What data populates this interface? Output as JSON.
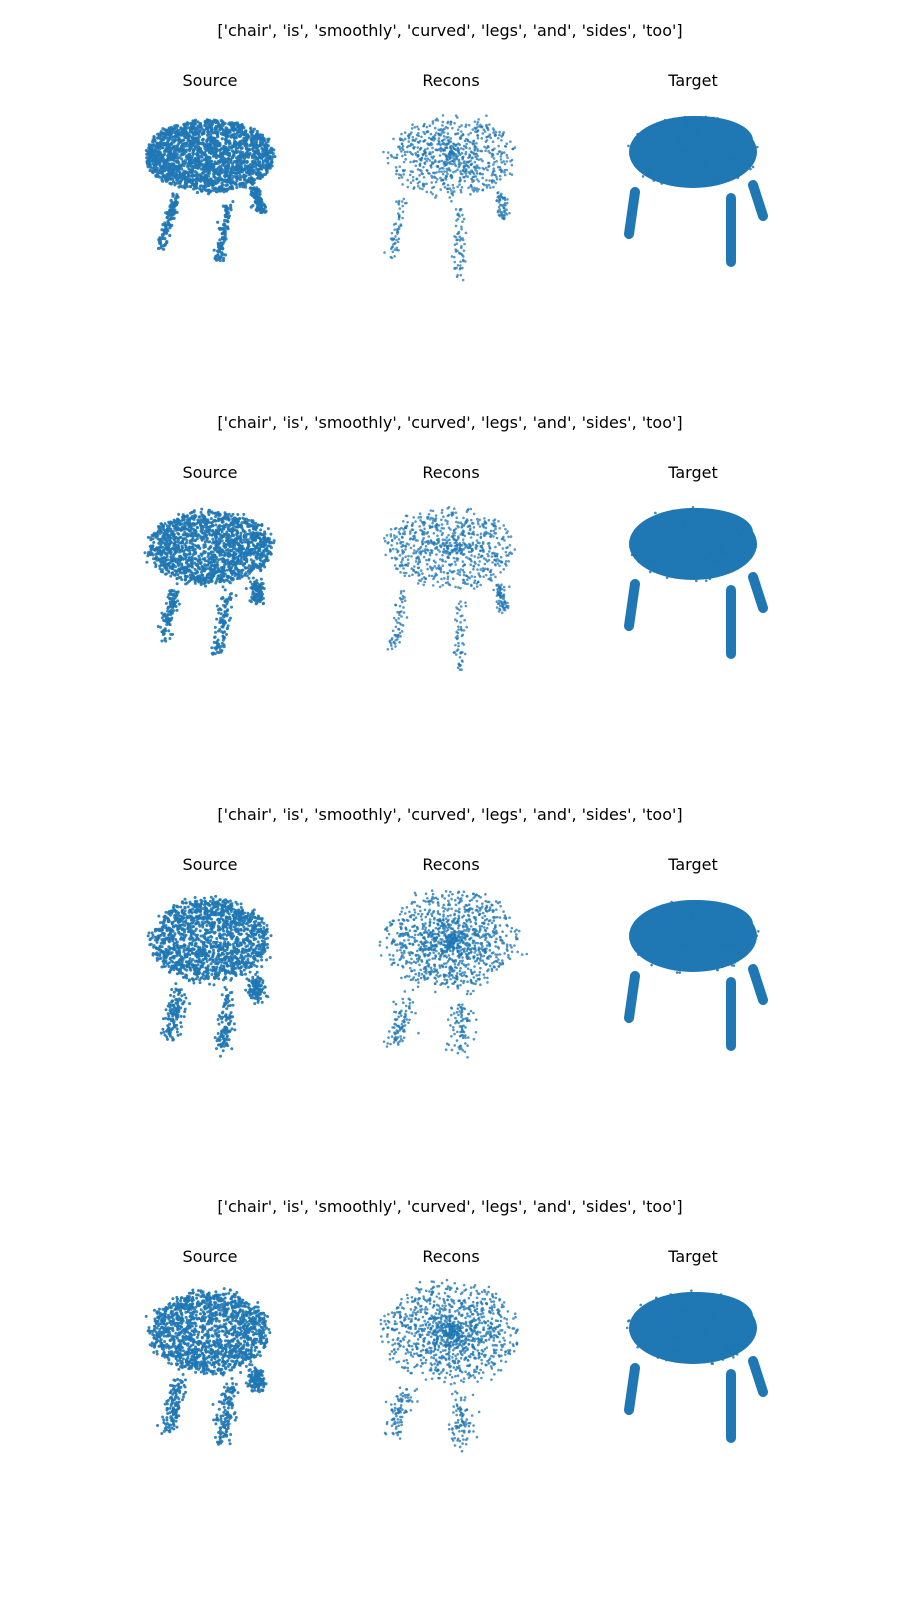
{
  "colors": {
    "points": "#1f77b4",
    "background": "#ffffff"
  },
  "rows": [
    {
      "title": "['chair', 'is', 'smoothly', 'curved', 'legs', 'and', 'sides', 'too']",
      "panels": [
        {
          "label": "Source",
          "style": "dense",
          "variant": 0
        },
        {
          "label": "Recons",
          "style": "sparse",
          "variant": 0
        },
        {
          "label": "Target",
          "style": "solid",
          "variant": 0
        }
      ]
    },
    {
      "title": "['chair', 'is', 'smoothly', 'curved', 'legs', 'and', 'sides', 'too']",
      "panels": [
        {
          "label": "Source",
          "style": "dense-noisy",
          "variant": 1
        },
        {
          "label": "Recons",
          "style": "sparse",
          "variant": 1
        },
        {
          "label": "Target",
          "style": "solid",
          "variant": 1
        }
      ]
    },
    {
      "title": "['chair', 'is', 'smoothly', 'curved', 'legs', 'and', 'sides', 'too']",
      "panels": [
        {
          "label": "Source",
          "style": "blob",
          "variant": 2
        },
        {
          "label": "Recons",
          "style": "cloud",
          "variant": 2
        },
        {
          "label": "Target",
          "style": "solid",
          "variant": 2
        }
      ]
    },
    {
      "title": "['chair', 'is', 'smoothly', 'curved', 'legs', 'and', 'sides', 'too']",
      "panels": [
        {
          "label": "Source",
          "style": "blob",
          "variant": 3
        },
        {
          "label": "Recons",
          "style": "cloud",
          "variant": 3
        },
        {
          "label": "Target",
          "style": "solid",
          "variant": 3
        }
      ]
    }
  ],
  "chart_data": {
    "type": "scatter",
    "title": "",
    "xlabel": "",
    "ylabel": "",
    "grid": false,
    "legend": "none",
    "rows": [
      {
        "title": "['chair', 'is', 'smoothly', 'curved', 'legs', 'and', 'sides', 'too']",
        "panels": [
          "Source",
          "Recons",
          "Target"
        ]
      },
      {
        "title": "['chair', 'is', 'smoothly', 'curved', 'legs', 'and', 'sides', 'too']",
        "panels": [
          "Source",
          "Recons",
          "Target"
        ]
      },
      {
        "title": "['chair', 'is', 'smoothly', 'curved', 'legs', 'and', 'sides', 'too']",
        "panels": [
          "Source",
          "Recons",
          "Target"
        ]
      },
      {
        "title": "['chair', 'is', 'smoothly', 'curved', 'legs', 'and', 'sides', 'too']",
        "panels": [
          "Source",
          "Recons",
          "Target"
        ]
      }
    ]
  }
}
